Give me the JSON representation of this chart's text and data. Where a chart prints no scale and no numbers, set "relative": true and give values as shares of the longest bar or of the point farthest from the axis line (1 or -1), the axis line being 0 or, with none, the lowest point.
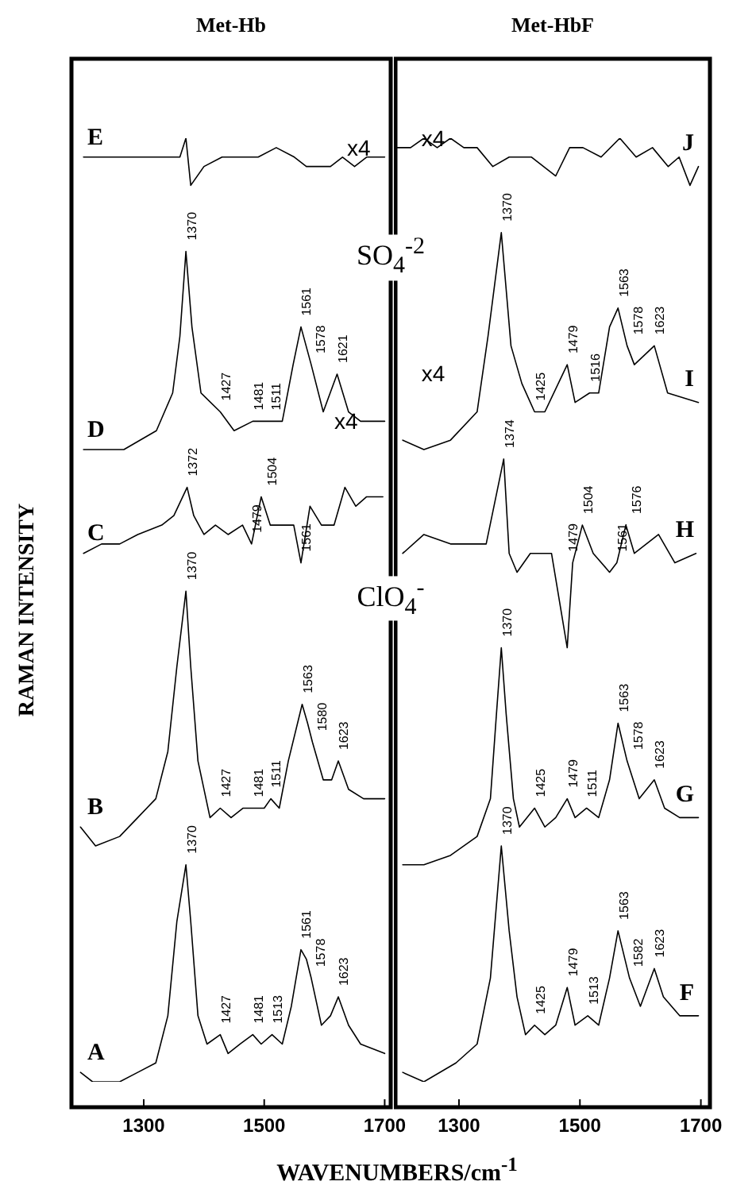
{
  "chart_data": [
    {
      "type": "line",
      "title": "Met-Hb",
      "ylabel": "RAMAN INTENSITY",
      "xlabel": "WAVENUMBERS/cm$^{-1}$",
      "relative": true,
      "xlim": [
        1180,
        1710
      ],
      "xticks": [
        1300,
        1500,
        1700
      ],
      "series": [
        {
          "name": "A",
          "color": "#000000",
          "x": [
            1195,
            1215,
            1260,
            1290,
            1320,
            1340,
            1355,
            1370,
            1378,
            1390,
            1405,
            1427,
            1440,
            1460,
            1481,
            1495,
            1513,
            1530,
            1545,
            1561,
            1570,
            1578,
            1595,
            1610,
            1623,
            1640,
            1660,
            1700
          ],
          "values": [
            0.01,
            0.0,
            0.0,
            0.01,
            0.02,
            0.07,
            0.17,
            0.23,
            0.17,
            0.07,
            0.04,
            0.05,
            0.03,
            0.04,
            0.05,
            0.04,
            0.05,
            0.04,
            0.08,
            0.14,
            0.13,
            0.11,
            0.06,
            0.07,
            0.09,
            0.06,
            0.04,
            0.03
          ]
        },
        {
          "name": "B",
          "color": "#000000",
          "x": [
            1195,
            1220,
            1260,
            1290,
            1320,
            1340,
            1355,
            1370,
            1378,
            1390,
            1410,
            1427,
            1445,
            1465,
            1481,
            1500,
            1511,
            1525,
            1540,
            1563,
            1572,
            1580,
            1598,
            1612,
            1623,
            1640,
            1665,
            1700
          ],
          "values": [
            0.27,
            0.25,
            0.26,
            0.28,
            0.3,
            0.35,
            0.44,
            0.52,
            0.44,
            0.34,
            0.28,
            0.29,
            0.28,
            0.29,
            0.29,
            0.29,
            0.3,
            0.29,
            0.34,
            0.4,
            0.38,
            0.36,
            0.32,
            0.32,
            0.34,
            0.31,
            0.3,
            0.3
          ]
        },
        {
          "name": "C",
          "color": "#000000",
          "x": [
            1200,
            1230,
            1260,
            1290,
            1330,
            1350,
            1372,
            1383,
            1400,
            1419,
            1440,
            1464,
            1479,
            1495,
            1510,
            1526,
            1549,
            1561,
            1576,
            1595,
            1616,
            1634,
            1652,
            1670,
            1697
          ],
          "values": [
            0.56,
            0.57,
            0.57,
            0.58,
            0.59,
            0.6,
            0.63,
            0.6,
            0.58,
            0.59,
            0.58,
            0.59,
            0.57,
            0.62,
            0.59,
            0.59,
            0.59,
            0.55,
            0.61,
            0.59,
            0.59,
            0.63,
            0.61,
            0.62,
            0.62
          ]
        },
        {
          "name": "D",
          "color": "#000000",
          "x": [
            1200,
            1267,
            1321,
            1348,
            1360,
            1370,
            1380,
            1395,
            1427,
            1450,
            1481,
            1511,
            1530,
            1548,
            1561,
            1578,
            1598,
            1621,
            1640,
            1660,
            1700
          ],
          "values": [
            0.67,
            0.67,
            0.69,
            0.73,
            0.79,
            0.88,
            0.8,
            0.73,
            0.71,
            0.69,
            0.7,
            0.7,
            0.7,
            0.76,
            0.8,
            0.76,
            0.71,
            0.75,
            0.71,
            0.7,
            0.7
          ]
        },
        {
          "name": "E",
          "color": "#000000",
          "x": [
            1200,
            1230,
            1260,
            1300,
            1340,
            1360,
            1370,
            1378,
            1400,
            1430,
            1460,
            1490,
            1520,
            1550,
            1570,
            1590,
            1610,
            1630,
            1650,
            1670,
            1700
          ],
          "values": [
            0.98,
            0.98,
            0.98,
            0.98,
            0.98,
            0.98,
            1.0,
            0.95,
            0.97,
            0.98,
            0.98,
            0.98,
            0.99,
            0.98,
            0.97,
            0.97,
            0.97,
            0.98,
            0.97,
            0.98,
            0.98
          ]
        }
      ],
      "annotations": [
        {
          "text": "1370",
          "x": 1370,
          "y": 0.23
        },
        {
          "text": "1427",
          "x": 1427,
          "y": 0.05
        },
        {
          "text": "1481",
          "x": 1481,
          "y": 0.05
        },
        {
          "text": "1513",
          "x": 1513,
          "y": 0.05
        },
        {
          "text": "1561",
          "x": 1561,
          "y": 0.14
        },
        {
          "text": "1578",
          "x": 1578,
          "y": 0.11
        },
        {
          "text": "1623",
          "x": 1623,
          "y": 0.09
        },
        {
          "text": "1370",
          "x": 1370,
          "y": 0.52
        },
        {
          "text": "1427",
          "x": 1427,
          "y": 0.29
        },
        {
          "text": "1481",
          "x": 1481,
          "y": 0.29
        },
        {
          "text": "1511",
          "x": 1511,
          "y": 0.3
        },
        {
          "text": "1563",
          "x": 1563,
          "y": 0.4
        },
        {
          "text": "1580",
          "x": 1580,
          "y": 0.36
        },
        {
          "text": "1623",
          "x": 1623,
          "y": 0.34
        },
        {
          "text": "1372",
          "x": 1372,
          "y": 0.63
        },
        {
          "text": "1479",
          "x": 1479,
          "y": 0.57
        },
        {
          "text": "1504",
          "x": 1504,
          "y": 0.62
        },
        {
          "text": "1561",
          "x": 1561,
          "y": 0.55
        },
        {
          "text": "1370",
          "x": 1370,
          "y": 0.88
        },
        {
          "text": "1427",
          "x": 1427,
          "y": 0.71
        },
        {
          "text": "1481",
          "x": 1481,
          "y": 0.7
        },
        {
          "text": "1511",
          "x": 1511,
          "y": 0.7
        },
        {
          "text": "1561",
          "x": 1561,
          "y": 0.8
        },
        {
          "text": "1578",
          "x": 1578,
          "y": 0.76
        },
        {
          "text": "1621",
          "x": 1621,
          "y": 0.75
        },
        "x4",
        "x4",
        "SO$_{4}$$^{-2}$",
        "ClO$_{4}$$^{-}$"
      ]
    },
    {
      "type": "line",
      "title": "Met-HbF",
      "relative": true,
      "xlim": [
        1195,
        1715
      ],
      "xticks": [
        1300,
        1500,
        1700
      ],
      "series": [
        {
          "name": "F",
          "color": "#000000",
          "x": [
            1207,
            1242,
            1295,
            1330,
            1352,
            1370,
            1383,
            1396,
            1410,
            1425,
            1442,
            1460,
            1479,
            1492,
            1513,
            1531,
            1549,
            1563,
            1582,
            1600,
            1623,
            1638,
            1665,
            1696
          ],
          "values": [
            0.01,
            0.0,
            0.02,
            0.04,
            0.11,
            0.25,
            0.16,
            0.09,
            0.05,
            0.06,
            0.05,
            0.06,
            0.1,
            0.06,
            0.07,
            0.06,
            0.11,
            0.16,
            0.11,
            0.08,
            0.12,
            0.09,
            0.07,
            0.07
          ]
        },
        {
          "name": "G",
          "color": "#000000",
          "x": [
            1207,
            1242,
            1286,
            1330,
            1352,
            1362,
            1370,
            1378,
            1390,
            1400,
            1425,
            1442,
            1460,
            1479,
            1492,
            1511,
            1531,
            1549,
            1563,
            1578,
            1598,
            1623,
            1640,
            1665,
            1696
          ],
          "values": [
            0.23,
            0.23,
            0.24,
            0.26,
            0.3,
            0.39,
            0.46,
            0.39,
            0.3,
            0.27,
            0.29,
            0.27,
            0.28,
            0.3,
            0.28,
            0.29,
            0.28,
            0.32,
            0.38,
            0.34,
            0.3,
            0.32,
            0.29,
            0.28,
            0.28
          ]
        },
        {
          "name": "H",
          "color": "#000000",
          "x": [
            1207,
            1242,
            1286,
            1345,
            1374,
            1383,
            1396,
            1418,
            1453,
            1479,
            1488,
            1504,
            1522,
            1549,
            1561,
            1576,
            1590,
            1630,
            1657,
            1692
          ],
          "values": [
            0.56,
            0.58,
            0.57,
            0.57,
            0.66,
            0.56,
            0.54,
            0.56,
            0.56,
            0.46,
            0.55,
            0.59,
            0.56,
            0.54,
            0.55,
            0.59,
            0.56,
            0.58,
            0.55,
            0.56
          ]
        },
        {
          "name": "I",
          "color": "#000000",
          "x": [
            1207,
            1242,
            1286,
            1330,
            1348,
            1370,
            1386,
            1404,
            1425,
            1442,
            1479,
            1492,
            1516,
            1531,
            1549,
            1563,
            1578,
            1590,
            1623,
            1645,
            1696
          ],
          "values": [
            0.68,
            0.67,
            0.68,
            0.71,
            0.79,
            0.9,
            0.78,
            0.74,
            0.71,
            0.71,
            0.76,
            0.72,
            0.73,
            0.73,
            0.8,
            0.82,
            0.78,
            0.76,
            0.78,
            0.73,
            0.72
          ]
        },
        {
          "name": "J",
          "color": "#000000",
          "x": [
            1198,
            1220,
            1242,
            1264,
            1286,
            1308,
            1330,
            1356,
            1383,
            1420,
            1460,
            1483,
            1505,
            1535,
            1566,
            1593,
            1620,
            1646,
            1664,
            1682,
            1696
          ],
          "values": [
            0.99,
            0.99,
            1.0,
            0.99,
            1.0,
            0.99,
            0.99,
            0.97,
            0.98,
            0.98,
            0.96,
            0.99,
            0.99,
            0.98,
            1.0,
            0.98,
            0.99,
            0.97,
            0.98,
            0.95,
            0.97
          ]
        }
      ],
      "annotations": [
        {
          "text": "1370",
          "x": 1370,
          "y": 0.25
        },
        {
          "text": "1425",
          "x": 1425,
          "y": 0.06
        },
        {
          "text": "1479",
          "x": 1479,
          "y": 0.1
        },
        {
          "text": "1513",
          "x": 1513,
          "y": 0.07
        },
        {
          "text": "1563",
          "x": 1563,
          "y": 0.16
        },
        {
          "text": "1582",
          "x": 1582,
          "y": 0.11
        },
        {
          "text": "1623",
          "x": 1623,
          "y": 0.12
        },
        {
          "text": "1370",
          "x": 1370,
          "y": 0.46
        },
        {
          "text": "1425",
          "x": 1425,
          "y": 0.29
        },
        {
          "text": "1479",
          "x": 1479,
          "y": 0.3
        },
        {
          "text": "1511",
          "x": 1511,
          "y": 0.29
        },
        {
          "text": "1563",
          "x": 1563,
          "y": 0.38
        },
        {
          "text": "1578",
          "x": 1578,
          "y": 0.34
        },
        {
          "text": "1623",
          "x": 1623,
          "y": 0.32
        },
        {
          "text": "1374",
          "x": 1374,
          "y": 0.66
        },
        {
          "text": "1479",
          "x": 1479,
          "y": 0.55
        },
        {
          "text": "1504",
          "x": 1504,
          "y": 0.59
        },
        {
          "text": "1561",
          "x": 1561,
          "y": 0.55
        },
        {
          "text": "1576",
          "x": 1576,
          "y": 0.59
        },
        {
          "text": "1370",
          "x": 1370,
          "y": 0.9
        },
        {
          "text": "1425",
          "x": 1425,
          "y": 0.71
        },
        {
          "text": "1479",
          "x": 1479,
          "y": 0.76
        },
        {
          "text": "1516",
          "x": 1516,
          "y": 0.73
        },
        {
          "text": "1563",
          "x": 1563,
          "y": 0.82
        },
        {
          "text": "1578",
          "x": 1578,
          "y": 0.78
        },
        {
          "text": "1623",
          "x": 1623,
          "y": 0.78
        },
        "x4",
        "x4"
      ]
    }
  ]
}
